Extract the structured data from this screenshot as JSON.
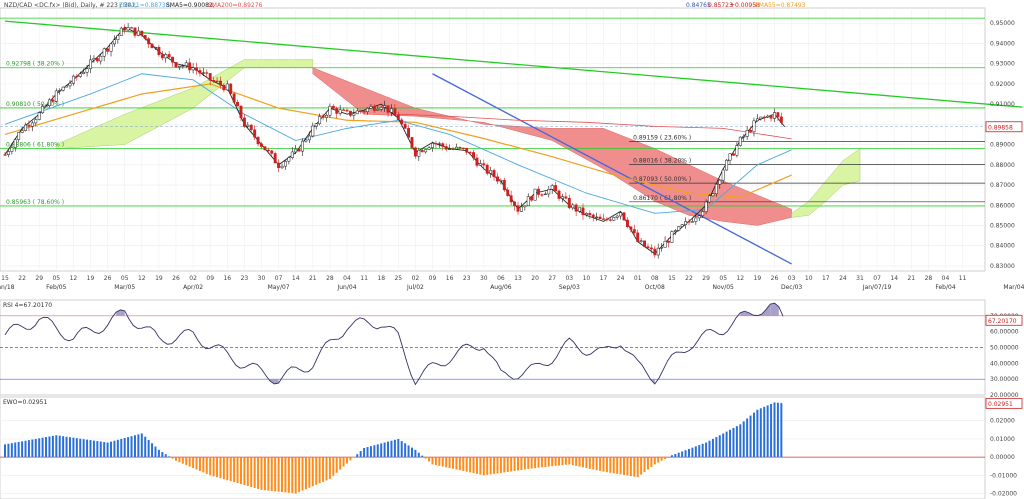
{
  "header": {
    "symbol_info": "NZD/CAD <DC.fx> (Bid), Daily, # 223 / 301,",
    "ema21": "EMA21=0.88738,",
    "sma5": "SMA5=0.90082,",
    "sma200": "SMA200=0.89276",
    "quote_o": "0.84765",
    "quote_c": "0.85723",
    "quote_chg": "+0.00958",
    "ema55": "EMA55=0.87493"
  },
  "colors": {
    "candle_up": "#1a1a1a",
    "candle_down": "#cc2020",
    "ema21": "#4aa8e0",
    "ema55": "#f0a020",
    "sma200": "#e05050",
    "sma5": "#222222",
    "trend_green": "#22cc22",
    "trend_blue": "#4466dd",
    "cloud_bull": "#d8f5a0",
    "cloud_bear": "#f08888",
    "rsi_line": "#333366",
    "ewo_up": "#2a70d8",
    "ewo_down": "#ff8c1a"
  },
  "chart_data": [
    {
      "type": "candlestick",
      "ylim": [
        0.8275,
        0.9575
      ],
      "y_ticks": [
        "0.95000",
        "0.94000",
        "0.93000",
        "0.92000",
        "0.91000",
        "0.90000",
        "0.89000",
        "0.88000",
        "0.87000",
        "0.86000",
        "0.85000",
        "0.84000",
        "0.83000"
      ],
      "current_price_label": "0.89858",
      "x_ticks": [
        "15",
        "22",
        "29",
        "05",
        "12",
        "19",
        "26",
        "05",
        "12",
        "19",
        "26",
        "02",
        "09",
        "16",
        "23",
        "30",
        "07",
        "14",
        "21",
        "28",
        "04",
        "11",
        "18",
        "25",
        "02",
        "09",
        "16",
        "23",
        "30",
        "06",
        "13",
        "20",
        "27",
        "03",
        "10",
        "17",
        "24",
        "01",
        "08",
        "15",
        "22",
        "29",
        "05",
        "12",
        "19",
        "26",
        "03",
        "10",
        "17",
        "24",
        "31",
        "07",
        "14",
        "21",
        "28",
        "04",
        "11"
      ],
      "month_labels": [
        {
          "label": "Jan/18",
          "tick": 0
        },
        {
          "label": "Feb/05",
          "tick": 3
        },
        {
          "label": "Mar/05",
          "tick": 7
        },
        {
          "label": "Apr/02",
          "tick": 11
        },
        {
          "label": "May/07",
          "tick": 16
        },
        {
          "label": "Jun/04",
          "tick": 20
        },
        {
          "label": "Jul/02",
          "tick": 24
        },
        {
          "label": "Aug/06",
          "tick": 29
        },
        {
          "label": "Sep/03",
          "tick": 33
        },
        {
          "label": "Oct/08",
          "tick": 38
        },
        {
          "label": "Nov/05",
          "tick": 42
        },
        {
          "label": "Dec/03",
          "tick": 46
        },
        {
          "label": "Jan/07/19",
          "tick": 51
        },
        {
          "label": "Feb/04",
          "tick": 55
        },
        {
          "label": "Mar/04",
          "tick": 59
        }
      ],
      "fib_levels": [
        {
          "label": "0.92798 ( 38.20% )",
          "value": 0.92798,
          "color": "#22cc22",
          "side": "left"
        },
        {
          "label": "0.90810 ( 50.00% )",
          "value": 0.9081,
          "color": "#22cc22",
          "side": "left"
        },
        {
          "label": "0.88806 ( 61.80% )",
          "value": 0.88806,
          "color": "#22cc22",
          "side": "left"
        },
        {
          "label": "0.85963 ( 78.60% )",
          "value": 0.85963,
          "color": "#22cc22",
          "side": "left"
        },
        {
          "label": "0.89159 ( 23.60% )",
          "value": 0.89159,
          "color": "#333333",
          "side": "right"
        },
        {
          "label": "0.88016 ( 38.20% )",
          "value": 0.88016,
          "color": "#333333",
          "side": "right"
        },
        {
          "label": "0.87093 ( 50.00% )",
          "value": 0.87093,
          "color": "#333333",
          "side": "right"
        },
        {
          "label": "0.86170 ( 61.80% )",
          "value": 0.8617,
          "color": "#333333",
          "side": "right"
        }
      ],
      "top_line_value": 0.9525,
      "trendlines": [
        {
          "name": "green-downtrend",
          "from": [
            0.0,
            0.951
          ],
          "to": [
            59.5,
            0.9085
          ],
          "color": "#22cc22"
        },
        {
          "name": "blue-downtrend",
          "from": [
            25.0,
            0.925
          ],
          "to": [
            46.0,
            0.831
          ],
          "color": "#4466dd"
        }
      ],
      "close_path": [
        [
          0,
          0.885
        ],
        [
          1,
          0.898
        ],
        [
          2,
          0.905
        ],
        [
          3,
          0.915
        ],
        [
          4,
          0.922
        ],
        [
          5,
          0.93
        ],
        [
          6,
          0.938
        ],
        [
          7,
          0.948
        ],
        [
          8,
          0.944
        ],
        [
          9,
          0.936
        ],
        [
          10,
          0.93
        ],
        [
          11,
          0.928
        ],
        [
          12,
          0.922
        ],
        [
          13,
          0.918
        ],
        [
          14,
          0.9
        ],
        [
          15,
          0.89
        ],
        [
          16,
          0.88
        ],
        [
          17,
          0.886
        ],
        [
          18,
          0.898
        ],
        [
          19,
          0.908
        ],
        [
          20,
          0.905
        ],
        [
          21,
          0.907
        ],
        [
          22,
          0.91
        ],
        [
          23,
          0.903
        ],
        [
          24,
          0.886
        ],
        [
          25,
          0.891
        ],
        [
          26,
          0.888
        ],
        [
          27,
          0.887
        ],
        [
          28,
          0.878
        ],
        [
          29,
          0.872
        ],
        [
          30,
          0.858
        ],
        [
          31,
          0.866
        ],
        [
          32,
          0.868
        ],
        [
          33,
          0.86
        ],
        [
          34,
          0.855
        ],
        [
          35,
          0.852
        ],
        [
          36,
          0.857
        ],
        [
          37,
          0.842
        ],
        [
          38,
          0.836
        ],
        [
          39,
          0.845
        ],
        [
          40,
          0.852
        ],
        [
          41,
          0.86
        ],
        [
          42,
          0.878
        ],
        [
          43,
          0.892
        ],
        [
          44,
          0.902
        ],
        [
          45,
          0.905
        ],
        [
          45.6,
          0.8988
        ]
      ],
      "ema21_path": [
        [
          0,
          0.9
        ],
        [
          5,
          0.915
        ],
        [
          8,
          0.925
        ],
        [
          11,
          0.922
        ],
        [
          14,
          0.905
        ],
        [
          17,
          0.892
        ],
        [
          20,
          0.898
        ],
        [
          23,
          0.902
        ],
        [
          26,
          0.895
        ],
        [
          30,
          0.88
        ],
        [
          34,
          0.866
        ],
        [
          38,
          0.856
        ],
        [
          41,
          0.858
        ],
        [
          44,
          0.88
        ],
        [
          46,
          0.8874
        ]
      ],
      "ema55_path": [
        [
          0,
          0.895
        ],
        [
          4,
          0.905
        ],
        [
          8,
          0.915
        ],
        [
          12,
          0.92
        ],
        [
          16,
          0.908
        ],
        [
          20,
          0.902
        ],
        [
          24,
          0.901
        ],
        [
          28,
          0.893
        ],
        [
          32,
          0.884
        ],
        [
          36,
          0.874
        ],
        [
          40,
          0.866
        ],
        [
          43,
          0.864
        ],
        [
          46,
          0.8749
        ]
      ],
      "sma200_path": [
        [
          23,
          0.905
        ],
        [
          26,
          0.904
        ],
        [
          30,
          0.902
        ],
        [
          34,
          0.901
        ],
        [
          38,
          0.899
        ],
        [
          42,
          0.898
        ],
        [
          46,
          0.8928
        ]
      ],
      "cloud_segments": [
        {
          "kind": "bull",
          "top": [
            [
              3,
              0.89
            ],
            [
              7,
              0.905
            ],
            [
              11,
              0.918
            ],
            [
              14,
              0.932
            ],
            [
              18,
              0.932
            ]
          ],
          "bottom": [
            [
              3,
              0.888
            ],
            [
              7,
              0.89
            ],
            [
              11,
              0.908
            ],
            [
              14,
              0.928
            ],
            [
              18,
              0.928
            ]
          ]
        },
        {
          "kind": "bear",
          "top": [
            [
              18,
              0.928
            ],
            [
              21,
              0.918
            ],
            [
              24,
              0.908
            ],
            [
              28,
              0.9
            ],
            [
              32,
              0.898
            ],
            [
              35,
              0.898
            ],
            [
              38,
              0.888
            ],
            [
              40,
              0.88
            ],
            [
              42,
              0.872
            ],
            [
              44,
              0.865
            ],
            [
              46,
              0.858
            ]
          ],
          "bottom": [
            [
              18,
              0.925
            ],
            [
              21,
              0.905
            ],
            [
              24,
              0.904
            ],
            [
              28,
              0.901
            ],
            [
              32,
              0.892
            ],
            [
              35,
              0.878
            ],
            [
              38,
              0.862
            ],
            [
              40,
              0.855
            ],
            [
              42,
              0.852
            ],
            [
              44,
              0.85
            ],
            [
              46,
              0.854
            ]
          ]
        },
        {
          "kind": "bull",
          "top": [
            [
              46,
              0.856
            ],
            [
              47,
              0.862
            ],
            [
              48,
              0.872
            ],
            [
              49,
              0.882
            ],
            [
              50,
              0.888
            ]
          ],
          "bottom": [
            [
              46,
              0.854
            ],
            [
              47,
              0.855
            ],
            [
              48,
              0.862
            ],
            [
              49,
              0.87
            ],
            [
              50,
              0.872
            ]
          ]
        }
      ]
    },
    {
      "type": "line",
      "name": "RSI",
      "label": "RSI 4=67.20170",
      "current_label": "67.20170",
      "ylim": [
        20,
        80
      ],
      "y_ticks": [
        "70.00000",
        "60.00000",
        "50.00000",
        "40.00000",
        "30.00000",
        "20.00000"
      ],
      "reference_lines": [
        70,
        50,
        30
      ],
      "values": [
        [
          0,
          58
        ],
        [
          2,
          68
        ],
        [
          4,
          56
        ],
        [
          6,
          65
        ],
        [
          7,
          72
        ],
        [
          9,
          55
        ],
        [
          11,
          58
        ],
        [
          13,
          45
        ],
        [
          15,
          34
        ],
        [
          16,
          30
        ],
        [
          18,
          40
        ],
        [
          20,
          64
        ],
        [
          22,
          66
        ],
        [
          23,
          56
        ],
        [
          24,
          30
        ],
        [
          26,
          44
        ],
        [
          28,
          53
        ],
        [
          29,
          32
        ],
        [
          31,
          36
        ],
        [
          33,
          52
        ],
        [
          35,
          46
        ],
        [
          36,
          55
        ],
        [
          37,
          38
        ],
        [
          38,
          31
        ],
        [
          40,
          52
        ],
        [
          42,
          62
        ],
        [
          44,
          74
        ],
        [
          45,
          76
        ],
        [
          45.6,
          67
        ]
      ]
    },
    {
      "type": "bar",
      "name": "EWO",
      "label": "EWO=0.02951",
      "current_label": "0.02951",
      "ylim": [
        -0.023,
        0.033
      ],
      "y_ticks": [
        "0.02000",
        "0.01000",
        "0.00000",
        "-0.01000",
        "-0.02000"
      ],
      "profile": [
        [
          0,
          0.007
        ],
        [
          3,
          0.012
        ],
        [
          6,
          0.008
        ],
        [
          8,
          0.013
        ],
        [
          9,
          0.004
        ],
        [
          10,
          -0.002
        ],
        [
          12,
          -0.01
        ],
        [
          15,
          -0.018
        ],
        [
          17,
          -0.02
        ],
        [
          19,
          -0.012
        ],
        [
          21,
          0.005
        ],
        [
          23,
          0.01
        ],
        [
          24,
          0.004
        ],
        [
          25,
          -0.004
        ],
        [
          28,
          -0.01
        ],
        [
          31,
          -0.006
        ],
        [
          33,
          -0.004
        ],
        [
          35,
          -0.008
        ],
        [
          37,
          -0.011
        ],
        [
          38,
          -0.004
        ],
        [
          39,
          0.001
        ],
        [
          41,
          0.008
        ],
        [
          43,
          0.018
        ],
        [
          44,
          0.026
        ],
        [
          45,
          0.03
        ],
        [
          45.6,
          0.0295
        ]
      ]
    }
  ]
}
